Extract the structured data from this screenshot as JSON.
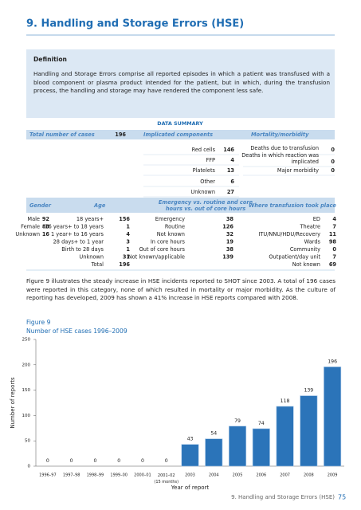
{
  "header": {
    "title": "9. Handling and Storage Errors (HSE)"
  },
  "definition": {
    "heading": "Definition",
    "text": "Handling and Storage Errors comprise all reported episodes in which a patient was transfused with a blood component or plasma product intended for the patient, but in which, during the transfusion process, the handling and storage may have rendered the component less safe."
  },
  "summary": {
    "title": "DATA SUMMARY",
    "total_label": "Total number of cases",
    "total_value": 196,
    "components": {
      "header": "Implicated components",
      "rows": [
        [
          "Red cells",
          146
        ],
        [
          "FFP",
          4
        ],
        [
          "Platelets",
          13
        ],
        [
          "Other",
          6
        ],
        [
          "Unknown",
          27
        ]
      ]
    },
    "mortality": {
      "header": "Mortality/morbidity",
      "rows": [
        [
          "Deaths due to transfusion",
          0
        ],
        [
          "Deaths in which reaction was\nimplicated",
          0
        ],
        [
          "Major morbidity",
          0
        ]
      ]
    },
    "gender": {
      "header": "Gender",
      "rows": [
        [
          "Male",
          92
        ],
        [
          "Female",
          88
        ],
        [
          "Unknown",
          16
        ]
      ]
    },
    "age": {
      "header": "Age",
      "rows": [
        [
          "18 years+",
          156
        ],
        [
          "16 years+ to 18 years",
          1
        ],
        [
          "1 year+ to 16 years",
          4
        ],
        [
          "28 days+ to 1 year",
          3
        ],
        [
          "Birth to 28 days",
          1
        ],
        [
          "Unknown",
          31
        ],
        [
          "Total",
          196
        ]
      ]
    },
    "timing": {
      "header": "Emergency vs. routine and core\nhours vs. out of core hours",
      "rows": [
        [
          "Emergency",
          38
        ],
        [
          "Routine",
          126
        ],
        [
          "Not known",
          32
        ],
        [
          "In core hours",
          19
        ],
        [
          "Out of core hours",
          38
        ],
        [
          "Not known/applicable",
          139
        ]
      ]
    },
    "place": {
      "header": "Where transfusion took place",
      "rows": [
        [
          "ED",
          4
        ],
        [
          "Theatre",
          7
        ],
        [
          "ITU/NNU/HDU/Recovery",
          11
        ],
        [
          "Wards",
          98
        ],
        [
          "Community",
          0
        ],
        [
          "Outpatient/day unit",
          7
        ],
        [
          "Not known",
          69
        ]
      ]
    }
  },
  "body_text": "Figure 9 illustrates the steady increase in HSE incidents reported to SHOT since 2003. A total of 196 cases were reported in this category, none of which resulted in mortality or major morbidity. As the culture of reporting has developed, 2009 has shown a 41% increase in HSE reports compared with 2008.",
  "chart_data": {
    "type": "bar",
    "title": "Figure 9",
    "subtitle": "Number of HSE cases 1996–2009",
    "x_label": "Year of report",
    "y_label": "Number of reports",
    "categories": [
      "1996–97",
      "1997–98",
      "1998–99",
      "1999–00",
      "2000–01",
      "2001–02\n(15 months)",
      "2003",
      "2004",
      "2005",
      "2006",
      "2007",
      "2008",
      "2009"
    ],
    "values": [
      0,
      0,
      0,
      0,
      0,
      0,
      43,
      54,
      79,
      74,
      118,
      139,
      196
    ],
    "color": "#2b74b9",
    "ylim": [
      0,
      250
    ],
    "yticks": [
      0,
      50,
      100,
      150,
      200,
      250
    ]
  },
  "footer": {
    "text": "9. Handling and Storage Errors (HSE)",
    "page": 75
  }
}
